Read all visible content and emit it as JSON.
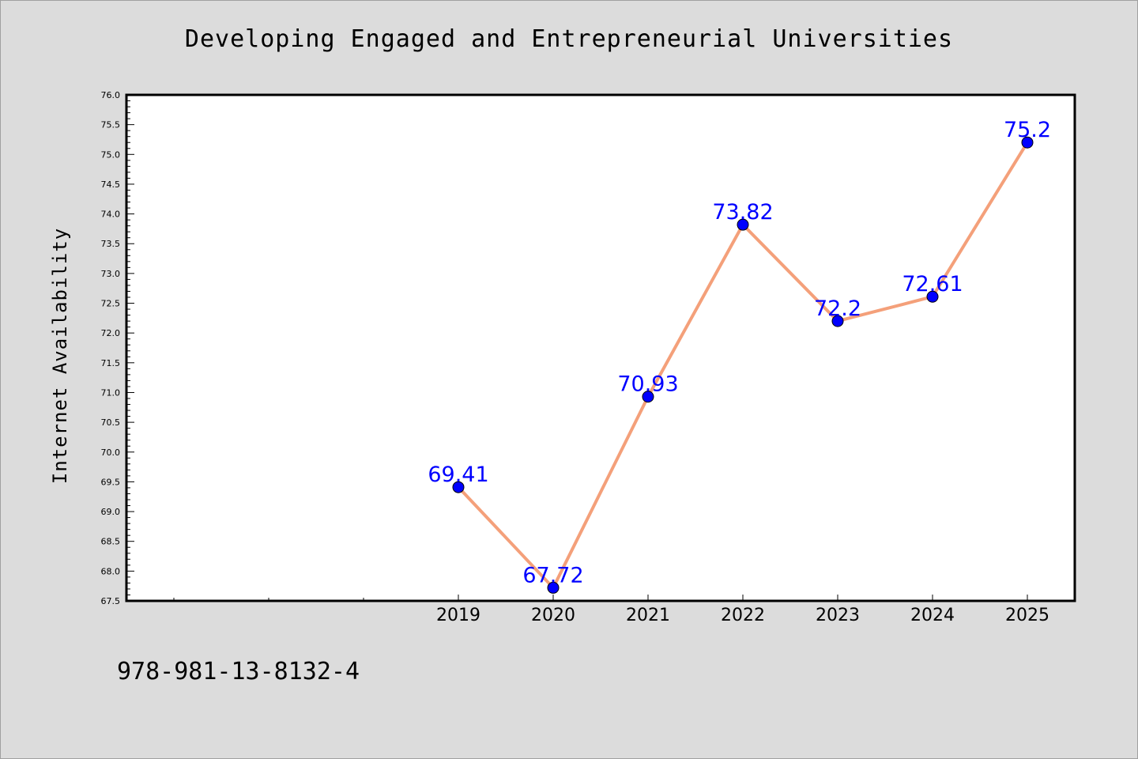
{
  "chart_data": {
    "type": "line",
    "title": "Developing Engaged and Entrepreneurial Universities",
    "xlabel": "",
    "ylabel": "Internet Availability",
    "categories": [
      "2019",
      "2020",
      "2021",
      "2022",
      "2023",
      "2024",
      "2025"
    ],
    "series": [
      {
        "values": [
          69.41,
          67.72,
          70.93,
          73.82,
          72.2,
          72.61,
          75.2
        ],
        "data_labels": [
          "69.41",
          "67.72",
          "70.93",
          "73.82",
          "72.2",
          "72.61",
          "75.2"
        ],
        "line_color": "#f4a07a",
        "marker_color": "#0000ff"
      }
    ],
    "ylim": [
      67.5,
      76.0
    ],
    "y_ticks": [
      "67.5",
      "68.0",
      "68.5",
      "69.0",
      "69.5",
      "70.0",
      "70.5",
      "71.0",
      "71.5",
      "72.0",
      "72.5",
      "73.0",
      "73.5",
      "74.0",
      "74.5",
      "75.0",
      "75.5",
      "76.0"
    ],
    "grid": false,
    "legend": "none"
  },
  "footer": {
    "text": "978-981-13-8132-4"
  },
  "colors": {
    "background": "#dcdcdc",
    "plot_background": "#ffffff",
    "label_color": "#0000ff"
  }
}
